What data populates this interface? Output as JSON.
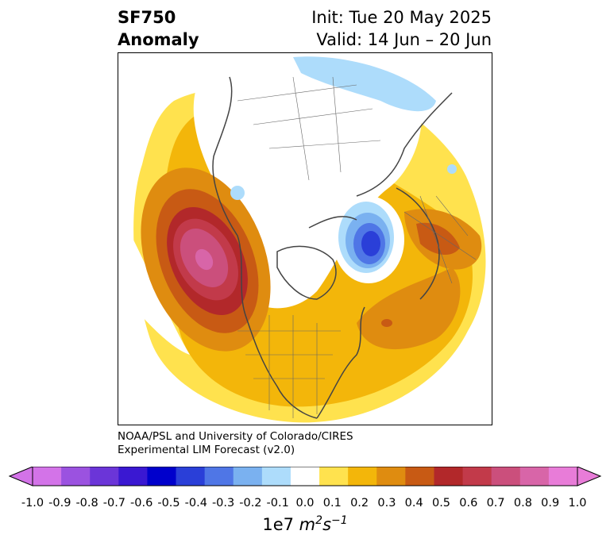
{
  "title": {
    "variable": "SF750",
    "subtitle": "Anomaly",
    "init": "Init: Tue 20 May 2025",
    "valid": "Valid: 14 Jun – 20 Jun"
  },
  "credit": {
    "line1": "NOAA/PSL and University of Colorado/CIRES",
    "line2": "Experimental LIM Forecast (v2.0)"
  },
  "colorbar": {
    "levels": [
      -1.0,
      -0.9,
      -0.8,
      -0.7,
      -0.6,
      -0.5,
      -0.4,
      -0.3,
      -0.2,
      -0.1,
      0.0,
      0.1,
      0.2,
      0.3,
      0.4,
      0.5,
      0.6,
      0.7,
      0.8,
      0.9,
      1.0
    ],
    "tick_labels": [
      "-1.0",
      "-0.9",
      "-0.8",
      "-0.7",
      "-0.6",
      "-0.5",
      "-0.4",
      "-0.3",
      "-0.2",
      "-0.1",
      "0.0",
      "0.1",
      "0.2",
      "0.3",
      "0.4",
      "0.5",
      "0.6",
      "0.7",
      "0.8",
      "0.9",
      "1.0"
    ],
    "colors": [
      "#d373e8",
      "#9b52e0",
      "#6b35d8",
      "#3a18d2",
      "#0000cc",
      "#2a3fd8",
      "#4f76e6",
      "#7ab1f0",
      "#addcfb",
      "#ffffff",
      "#ffe24e",
      "#f3b60a",
      "#df8c10",
      "#c85a14",
      "#b2282a",
      "#c23a4a",
      "#cb4f7c",
      "#d865a8",
      "#e87cd8"
    ],
    "under_color": "#d373e8",
    "over_color": "#e87cd8",
    "units_prefix": "1e7",
    "units_base": "m",
    "units_exp1": "2",
    "units_mid": "s",
    "units_exp2": "−1"
  },
  "map": {
    "projection": "north-polar-stereographic",
    "field": "750-hPa streamfunction anomaly",
    "features": [
      {
        "name": "positive-anomaly-northeast-pacific",
        "peak": 0.8
      },
      {
        "name": "positive-anomaly-north-atlantic",
        "peak": 0.5
      },
      {
        "name": "positive-anomaly-eastern-europe",
        "peak": 0.4
      },
      {
        "name": "negative-anomaly-barents-sea",
        "peak": -0.6
      },
      {
        "name": "negative-anomaly-siberia",
        "peak": -0.2
      }
    ]
  }
}
